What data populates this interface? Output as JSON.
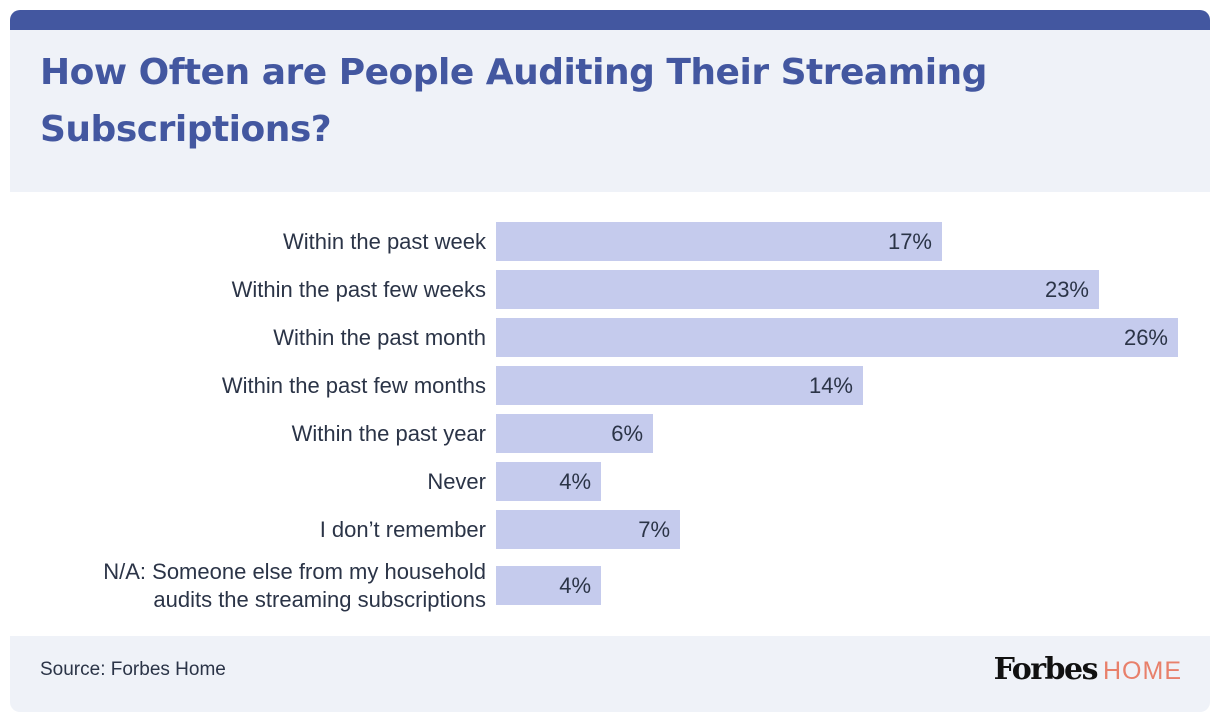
{
  "title": "How Often are People Auditing Their Streaming Subscriptions?",
  "source": "Source: Forbes Home",
  "logo": {
    "brand": "Forbes",
    "sub": "HOME"
  },
  "colors": {
    "accent": "#4357a0",
    "bar": "#c5cbed",
    "header_bg": "#eff2f8",
    "text": "#2b3447",
    "logo_sub": "#e8806b"
  },
  "chart_data": {
    "type": "bar",
    "orientation": "horizontal",
    "title": "How Often are People Auditing Their Streaming Subscriptions?",
    "categories": [
      "Within the past week",
      "Within the past few weeks",
      "Within the past month",
      "Within the past few months",
      "Within the past year",
      "Never",
      "I don’t remember",
      "N/A: Someone else from my household audits the streaming subscriptions"
    ],
    "category_lines": [
      [
        "Within the past week"
      ],
      [
        "Within the past few weeks"
      ],
      [
        "Within the past month"
      ],
      [
        "Within the past few months"
      ],
      [
        "Within the past year"
      ],
      [
        "Never"
      ],
      [
        "I don’t remember"
      ],
      [
        "N/A: Someone else from my household",
        "audits the streaming subscriptions"
      ]
    ],
    "values": [
      17,
      23,
      26,
      14,
      6,
      4,
      7,
      4
    ],
    "labels": [
      "17%",
      "23%",
      "26%",
      "14%",
      "6%",
      "4%",
      "7%",
      "4%"
    ],
    "unit": "%",
    "xlabel": "",
    "ylabel": "",
    "xlim": [
      0,
      26
    ],
    "grid": false,
    "legend": "none"
  }
}
